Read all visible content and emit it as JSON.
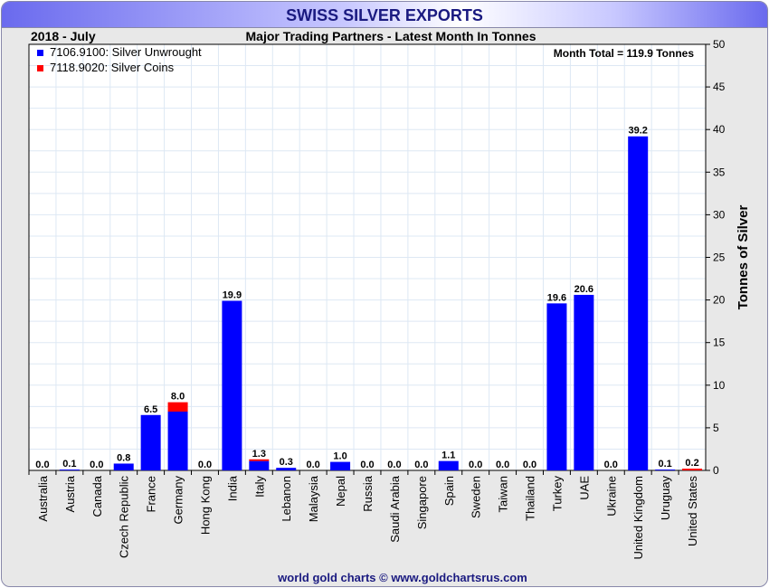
{
  "chart_data": {
    "type": "bar",
    "stacked": true,
    "title": "SWISS SILVER EXPORTS",
    "subtitle": "Major Trading Partners - Latest Month In Tonnes",
    "period": "2018 - July",
    "annotation": "Month Total = 119.9 Tonnes",
    "ylabel": "Tonnes of Silver",
    "ylim": [
      0,
      50
    ],
    "yticks": [
      0,
      5,
      10,
      15,
      20,
      25,
      30,
      35,
      40,
      45,
      50
    ],
    "legend_position": "top-left",
    "footer": "world gold charts © www.goldchartsrus.com",
    "categories": [
      "Australia",
      "Austria",
      "Canada",
      "Czech Republic",
      "France",
      "Germany",
      "Hong Kong",
      "India",
      "Italy",
      "Lebanon",
      "Malaysia",
      "Nepal",
      "Russia",
      "Saudi Arabia",
      "Singapore",
      "Spain",
      "Sweden",
      "Taiwan",
      "Thailand",
      "Turkey",
      "UAE",
      "Ukraine",
      "United Kingdom",
      "Uruguay",
      "United States"
    ],
    "series": [
      {
        "name": "7106.9100: Silver Unwrought",
        "color": "#0000ff",
        "values": [
          0,
          0.1,
          0,
          0.8,
          6.5,
          6.9,
          0,
          19.9,
          1.1,
          0.3,
          0,
          1.0,
          0,
          0,
          0,
          1.1,
          0,
          0,
          0,
          19.6,
          20.6,
          0,
          39.2,
          0.1,
          0
        ]
      },
      {
        "name": "7118.9020: Silver Coins",
        "color": "#ff0000",
        "values": [
          0,
          0,
          0,
          0,
          0,
          1.1,
          0,
          0,
          0.2,
          0,
          0,
          0,
          0,
          0,
          0,
          0,
          0,
          0,
          0,
          0,
          0,
          0,
          0,
          0,
          0.2
        ]
      }
    ],
    "totals": [
      "0.0",
      "0.1",
      "0.0",
      "0.8",
      "6.5",
      "8.0",
      "0.0",
      "19.9",
      "1.3",
      "0.3",
      "0.0",
      "1.0",
      "0.0",
      "0.0",
      "0.0",
      "1.1",
      "0.0",
      "0.0",
      "0.0",
      "19.6",
      "20.6",
      "0.0",
      "39.2",
      "0.1",
      "0.2"
    ]
  }
}
